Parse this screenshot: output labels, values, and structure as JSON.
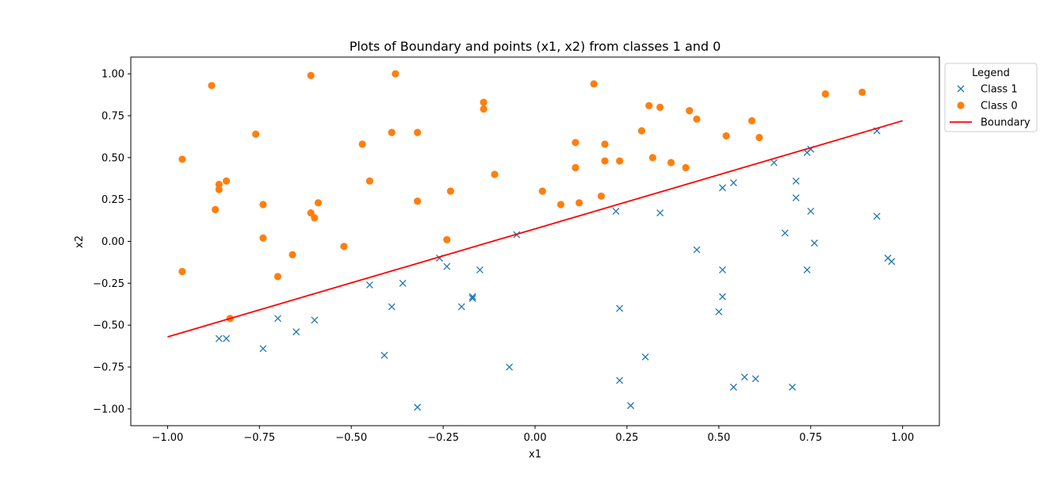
{
  "chart_data": {
    "type": "scatter",
    "title": "Plots of Boundary and points (x1, x2) from classes 1 and 0",
    "xlabel": "x1",
    "ylabel": "x2",
    "xlim": [
      -1.1,
      1.1
    ],
    "ylim": [
      -1.1,
      1.1
    ],
    "xticks": [
      -1.0,
      -0.75,
      -0.5,
      -0.25,
      0.0,
      0.25,
      0.5,
      0.75,
      1.0
    ],
    "yticks": [
      -1.0,
      -0.75,
      -0.5,
      -0.25,
      0.0,
      0.25,
      0.5,
      0.75,
      1.0
    ],
    "xtick_labels": [
      "−1.00",
      "−0.75",
      "−0.50",
      "−0.25",
      "0.00",
      "0.25",
      "0.50",
      "0.75",
      "1.00"
    ],
    "ytick_labels": [
      "−1.00",
      "−0.75",
      "−0.50",
      "−0.25",
      "0.00",
      "0.25",
      "0.50",
      "0.75",
      "1.00"
    ],
    "grid": false,
    "legend": {
      "title": "Legend",
      "placement": "outside-upper-right",
      "entries": [
        "Class 1",
        "Class 0",
        "Boundary"
      ]
    },
    "series": [
      {
        "name": "Class 1",
        "marker": "x",
        "color": "#1f77b4",
        "points": [
          [
            -0.86,
            -0.58
          ],
          [
            -0.84,
            -0.58
          ],
          [
            -0.74,
            -0.64
          ],
          [
            -0.7,
            -0.46
          ],
          [
            -0.65,
            -0.54
          ],
          [
            -0.6,
            -0.47
          ],
          [
            -0.45,
            -0.26
          ],
          [
            -0.41,
            -0.68
          ],
          [
            -0.39,
            -0.39
          ],
          [
            -0.36,
            -0.25
          ],
          [
            -0.32,
            -0.99
          ],
          [
            -0.26,
            -0.1
          ],
          [
            -0.24,
            -0.15
          ],
          [
            -0.2,
            -0.39
          ],
          [
            -0.17,
            -0.33
          ],
          [
            -0.17,
            -0.34
          ],
          [
            -0.15,
            -0.17
          ],
          [
            -0.07,
            -0.75
          ],
          [
            -0.05,
            0.04
          ],
          [
            0.22,
            0.18
          ],
          [
            0.23,
            -0.83
          ],
          [
            0.23,
            -0.4
          ],
          [
            0.26,
            -0.98
          ],
          [
            0.3,
            -0.69
          ],
          [
            0.34,
            0.17
          ],
          [
            0.44,
            -0.05
          ],
          [
            0.5,
            -0.42
          ],
          [
            0.51,
            0.32
          ],
          [
            0.51,
            -0.17
          ],
          [
            0.51,
            -0.33
          ],
          [
            0.54,
            0.35
          ],
          [
            0.54,
            -0.87
          ],
          [
            0.57,
            -0.81
          ],
          [
            0.6,
            -0.82
          ],
          [
            0.65,
            0.47
          ],
          [
            0.68,
            0.05
          ],
          [
            0.7,
            -0.87
          ],
          [
            0.71,
            0.36
          ],
          [
            0.71,
            0.26
          ],
          [
            0.74,
            -0.17
          ],
          [
            0.74,
            0.53
          ],
          [
            0.75,
            0.18
          ],
          [
            0.75,
            0.55
          ],
          [
            0.76,
            -0.01
          ],
          [
            0.93,
            0.15
          ],
          [
            0.93,
            0.66
          ],
          [
            0.96,
            -0.1
          ],
          [
            0.97,
            -0.12
          ]
        ]
      },
      {
        "name": "Class 0",
        "marker": "o",
        "color": "#ff7f0e",
        "points": [
          [
            -0.96,
            0.49
          ],
          [
            -0.96,
            -0.18
          ],
          [
            -0.88,
            0.93
          ],
          [
            -0.87,
            0.19
          ],
          [
            -0.86,
            0.34
          ],
          [
            -0.86,
            0.31
          ],
          [
            -0.84,
            0.36
          ],
          [
            -0.83,
            -0.46
          ],
          [
            -0.76,
            0.64
          ],
          [
            -0.74,
            0.22
          ],
          [
            -0.74,
            0.02
          ],
          [
            -0.66,
            -0.08
          ],
          [
            -0.7,
            -0.21
          ],
          [
            -0.61,
            0.99
          ],
          [
            -0.61,
            0.17
          ],
          [
            -0.6,
            0.14
          ],
          [
            -0.59,
            0.23
          ],
          [
            -0.52,
            -0.03
          ],
          [
            -0.47,
            0.58
          ],
          [
            -0.45,
            0.36
          ],
          [
            -0.39,
            0.65
          ],
          [
            -0.38,
            1.0
          ],
          [
            -0.32,
            0.65
          ],
          [
            -0.32,
            0.24
          ],
          [
            -0.24,
            0.01
          ],
          [
            -0.23,
            0.3
          ],
          [
            -0.14,
            0.83
          ],
          [
            -0.14,
            0.79
          ],
          [
            -0.11,
            0.4
          ],
          [
            0.02,
            0.3
          ],
          [
            0.07,
            0.22
          ],
          [
            0.11,
            0.59
          ],
          [
            0.11,
            0.44
          ],
          [
            0.12,
            0.23
          ],
          [
            0.16,
            0.94
          ],
          [
            0.18,
            0.27
          ],
          [
            0.19,
            0.58
          ],
          [
            0.19,
            0.48
          ],
          [
            0.23,
            0.48
          ],
          [
            0.29,
            0.66
          ],
          [
            0.31,
            0.81
          ],
          [
            0.32,
            0.5
          ],
          [
            0.34,
            0.8
          ],
          [
            0.37,
            0.47
          ],
          [
            0.41,
            0.44
          ],
          [
            0.42,
            0.78
          ],
          [
            0.44,
            0.73
          ],
          [
            0.52,
            0.63
          ],
          [
            0.59,
            0.72
          ],
          [
            0.61,
            0.62
          ],
          [
            0.79,
            0.88
          ],
          [
            0.89,
            0.89
          ]
        ]
      },
      {
        "name": "Boundary",
        "marker": "line",
        "color": "#ff0000",
        "points": [
          [
            -1.0,
            -0.57
          ],
          [
            1.0,
            0.72
          ]
        ]
      }
    ]
  }
}
